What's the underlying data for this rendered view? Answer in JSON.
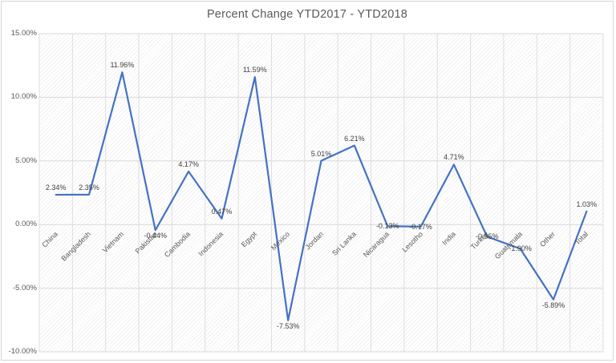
{
  "chart_data": {
    "type": "line",
    "title": "Percent Change YTD2017 - YTD2018",
    "categories": [
      "China",
      "Bangladesh",
      "Vietnam",
      "Pakistan",
      "Cambodia",
      "Indonesia",
      "Egypt",
      "Mexico",
      "Jordan",
      "Sri Lanka",
      "Nicaragua",
      "Lesotho",
      "India",
      "Turkey",
      "Guatemala",
      "Other",
      "Total"
    ],
    "values": [
      2.34,
      2.35,
      11.96,
      -0.44,
      4.17,
      0.47,
      11.59,
      -7.53,
      5.01,
      6.21,
      -0.13,
      -0.17,
      4.71,
      -0.95,
      -1.9,
      -5.89,
      1.03
    ],
    "data_labels": [
      "2.34%",
      "2.35%",
      "11.96%",
      "-0.44%",
      "4.17%",
      "0.47%",
      "11.59%",
      "-7.53%",
      "5.01%",
      "6.21%",
      "-0.13%",
      "-0.17%",
      "4.71%",
      "-0.95%",
      "-1.90%",
      "-5.89%",
      "1.03%"
    ],
    "data_label_positions": [
      "above",
      "above",
      "above",
      "below",
      "above",
      "above",
      "above",
      "below",
      "above",
      "above",
      "center",
      "center",
      "above",
      "center",
      "center",
      "below",
      "above"
    ],
    "xlabel": "",
    "ylabel": "",
    "y_axis": {
      "min": -10,
      "max": 15,
      "step": 5,
      "tick_labels": [
        "15.00%",
        "10.00%",
        "5.00%",
        "0.00%",
        "-5.00%",
        "-10.00%"
      ],
      "tick_values": [
        15,
        10,
        5,
        0,
        -5,
        -10
      ]
    },
    "legend": "none",
    "grid": {
      "horizontal": true,
      "vertical": true
    },
    "plot_background": "diagonal-hatch",
    "colors": {
      "line": "#4472C4",
      "title_text": "#595959",
      "axis_text": "#595959",
      "data_label_text": "#404040",
      "gridline_horizontal": "#d9d9d9",
      "gridline_vertical": "#dedede",
      "chart_border": "#d6d6d6"
    }
  }
}
